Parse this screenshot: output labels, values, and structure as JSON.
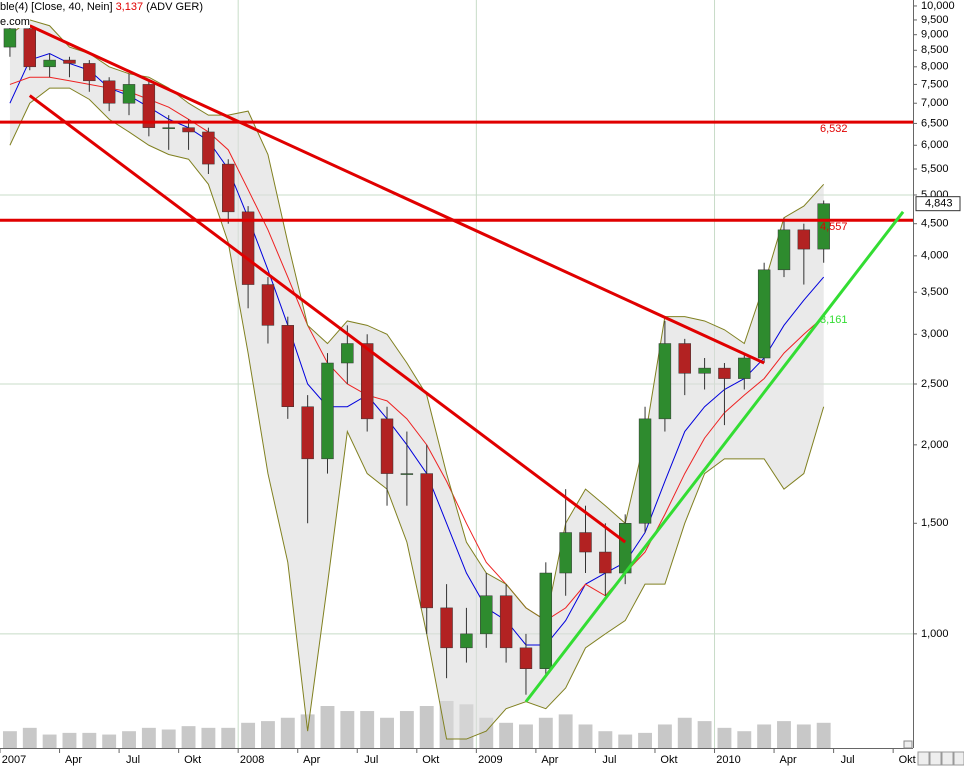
{
  "chart_data": {
    "type": "candlestick",
    "title": "ble(4) [Close, 40, Nein]",
    "title_value": {
      "value": 3137,
      "label": "3,137"
    },
    "title_suffix": "(ADV GER)",
    "source": "e.com",
    "log_scale": true,
    "ylim": [
      658,
      10221
    ],
    "yticks": [
      {
        "value": 10000,
        "label": "10,000"
      },
      {
        "value": 9500,
        "label": "9,500"
      },
      {
        "value": 9000,
        "label": "9,000"
      },
      {
        "value": 8500,
        "label": "8,500"
      },
      {
        "value": 8000,
        "label": "8,000"
      },
      {
        "value": 7500,
        "label": "7,500"
      },
      {
        "value": 7000,
        "label": "7,000"
      },
      {
        "value": 6500,
        "label": "6,500"
      },
      {
        "value": 6000,
        "label": "6,000"
      },
      {
        "value": 5500,
        "label": "5,500"
      },
      {
        "value": 5000,
        "label": "5,000"
      },
      {
        "value": 4500,
        "label": "4,500"
      },
      {
        "value": 4000,
        "label": "4,000"
      },
      {
        "value": 3500,
        "label": "3,500"
      },
      {
        "value": 3000,
        "label": "3,000"
      },
      {
        "value": 2500,
        "label": "2,500"
      },
      {
        "value": 2000,
        "label": "2,000"
      },
      {
        "value": 1500,
        "label": "1,500"
      },
      {
        "value": 1000,
        "label": "1,000"
      }
    ],
    "ygrid": [
      1000,
      2500,
      5000
    ],
    "xlim": [
      "2007-01",
      "2010-11"
    ],
    "xticks": [
      {
        "value": "2007-01",
        "label": "2007"
      },
      {
        "value": "2007-04",
        "label": "Apr"
      },
      {
        "value": "2007-07",
        "label": "Jul"
      },
      {
        "value": "2007-10",
        "label": "Okt"
      },
      {
        "value": "2008-01",
        "label": "2008"
      },
      {
        "value": "2008-04",
        "label": "Apr"
      },
      {
        "value": "2008-07",
        "label": "Jul"
      },
      {
        "value": "2008-10",
        "label": "Okt"
      },
      {
        "value": "2009-01",
        "label": "2009"
      },
      {
        "value": "2009-04",
        "label": "Apr"
      },
      {
        "value": "2009-07",
        "label": "Jul"
      },
      {
        "value": "2009-10",
        "label": "Okt"
      },
      {
        "value": "2010-01",
        "label": "2010"
      },
      {
        "value": "2010-04",
        "label": "Apr"
      },
      {
        "value": "2010-07",
        "label": "Jul"
      },
      {
        "value": "2010-10",
        "label": "Okt"
      }
    ],
    "xgrid": [
      "2008-01",
      "2009-01",
      "2010-01"
    ],
    "x": [
      "2007-01",
      "2007-02",
      "2007-03",
      "2007-04",
      "2007-05",
      "2007-06",
      "2007-07",
      "2007-08",
      "2007-09",
      "2007-10",
      "2007-11",
      "2007-12",
      "2008-01",
      "2008-02",
      "2008-03",
      "2008-04",
      "2008-05",
      "2008-06",
      "2008-07",
      "2008-08",
      "2008-09",
      "2008-10",
      "2008-11",
      "2008-12",
      "2009-01",
      "2009-02",
      "2009-03",
      "2009-04",
      "2009-05",
      "2009-06",
      "2009-07",
      "2009-08",
      "2009-09",
      "2009-10",
      "2009-11",
      "2009-12",
      "2010-01",
      "2010-02",
      "2010-03",
      "2010-04",
      "2010-05",
      "2010-06"
    ],
    "open": [
      8600,
      9200,
      8000,
      8200,
      8100,
      7600,
      7000,
      7500,
      6400,
      6400,
      6300,
      5600,
      4700,
      3600,
      3100,
      2300,
      1900,
      2700,
      2900,
      2200,
      1800,
      1800,
      1100,
      950,
      1000,
      1150,
      950,
      880,
      1250,
      1450,
      1350,
      1250,
      1500,
      2200,
      2900,
      2600,
      2650,
      2550,
      2750,
      3800,
      4400,
      4100
    ],
    "high": [
      9400,
      9300,
      8400,
      8300,
      8200,
      7700,
      7800,
      7600,
      6700,
      6600,
      6400,
      5700,
      4800,
      3700,
      3200,
      2400,
      2800,
      3100,
      3000,
      2300,
      2100,
      2000,
      1200,
      1100,
      1250,
      1200,
      1000,
      1300,
      1700,
      1600,
      1500,
      1550,
      2300,
      3150,
      2950,
      2750,
      2700,
      2800,
      3900,
      4600,
      4500,
      4900
    ],
    "low": [
      8300,
      7900,
      7700,
      7700,
      7300,
      6800,
      6700,
      6200,
      5900,
      5900,
      5400,
      4500,
      3300,
      2900,
      2200,
      1500,
      1800,
      2500,
      2100,
      1600,
      1600,
      1000,
      850,
      900,
      950,
      900,
      800,
      860,
      1150,
      1250,
      1150,
      1200,
      1450,
      2100,
      2400,
      2450,
      2150,
      2450,
      2700,
      3700,
      3600,
      3900
    ],
    "close": [
      9200,
      8000,
      8200,
      8100,
      7600,
      7000,
      7500,
      6400,
      6400,
      6300,
      5600,
      4700,
      3600,
      3100,
      2300,
      1900,
      2700,
      2900,
      2200,
      1800,
      1800,
      1100,
      950,
      1000,
      1150,
      950,
      880,
      1250,
      1450,
      1350,
      1250,
      1500,
      2200,
      2900,
      2600,
      2650,
      2550,
      2750,
      3800,
      4400,
      4100,
      4843
    ],
    "up_color": "#2e8b2e",
    "down_color": "#b22222",
    "overlays": [
      {
        "color": "#0000dd",
        "values": [
          7000,
          8200,
          8400,
          8100,
          7900,
          7400,
          7200,
          6900,
          6600,
          6400,
          6100,
          5500,
          4600,
          3800,
          3100,
          2500,
          2300,
          2300,
          2400,
          2200,
          2000,
          1800,
          1500,
          1250,
          1100,
          1050,
          960,
          960,
          1050,
          1200,
          1250,
          1300,
          1450,
          1750,
          2100,
          2300,
          2450,
          2550,
          2750,
          3100,
          3400,
          3700
        ]
      },
      {
        "color": "#ee2222",
        "values": [
          7500,
          7700,
          7700,
          7600,
          7500,
          7400,
          7300,
          7100,
          6900,
          6600,
          6300,
          5900,
          5100,
          4400,
          3700,
          3100,
          2700,
          2500,
          2400,
          2350,
          2200,
          2000,
          1750,
          1500,
          1300,
          1200,
          1100,
          1050,
          1100,
          1200,
          1150,
          1250,
          1350,
          1550,
          1800,
          2050,
          2250,
          2400,
          2550,
          2800,
          3000,
          3200
        ]
      },
      {
        "color": "#808020",
        "values": [
          9000,
          9500,
          9300,
          8600,
          8400,
          8000,
          7800,
          7700,
          7400,
          7000,
          6700,
          6700,
          6800,
          5800,
          4200,
          3100,
          2900,
          3150,
          3100,
          3000,
          2700,
          2400,
          1800,
          1400,
          1250,
          1200,
          1100,
          1050,
          1500,
          1700,
          1600,
          1500,
          2050,
          3200,
          3200,
          3150,
          3050,
          2900,
          3600,
          4600,
          4800,
          5200
        ]
      },
      {
        "color": "#808020",
        "values": [
          6000,
          7000,
          7400,
          7400,
          7100,
          6600,
          6300,
          6000,
          5800,
          5700,
          5200,
          4200,
          2800,
          1800,
          1300,
          700,
          1200,
          2100,
          1800,
          1700,
          1400,
          1000,
          680,
          680,
          700,
          760,
          780,
          760,
          820,
          950,
          1000,
          1050,
          1200,
          1200,
          1500,
          1800,
          1900,
          1900,
          1900,
          1700,
          1800,
          2300
        ]
      }
    ],
    "band_color": "#dcdcdc",
    "y2lim": [
      0,
      100
    ],
    "volume_color": "#c8c8c8",
    "volume": [
      10,
      12,
      8,
      9,
      9,
      8,
      10,
      12,
      11,
      13,
      12,
      12,
      15,
      16,
      18,
      20,
      25,
      22,
      22,
      18,
      22,
      25,
      28,
      26,
      18,
      15,
      14,
      18,
      20,
      14,
      10,
      8,
      9,
      14,
      18,
      16,
      12,
      10,
      14,
      16,
      14,
      15
    ],
    "trendlines": [
      {
        "color": "#e00000",
        "x": [
          "2007-02",
          "2010-03"
        ],
        "values": [
          9300,
          2700
        ]
      },
      {
        "color": "#e00000",
        "x": [
          "2007-02",
          "2009-08"
        ],
        "values": [
          7200,
          1400
        ]
      },
      {
        "color": "#33dd33",
        "x": [
          "2009-03",
          "2010-10"
        ],
        "values": [
          780,
          4700
        ]
      }
    ],
    "levels": [
      {
        "value": 6532,
        "label": "6,532",
        "color": "#e00000"
      },
      {
        "value": 4557,
        "label": "4,557",
        "color": "#e00000"
      }
    ],
    "annotations": [
      {
        "value": 3161,
        "label": "3,161",
        "color": "#33dd33"
      }
    ],
    "last_price": {
      "value": 4843,
      "label": "4,843"
    }
  }
}
